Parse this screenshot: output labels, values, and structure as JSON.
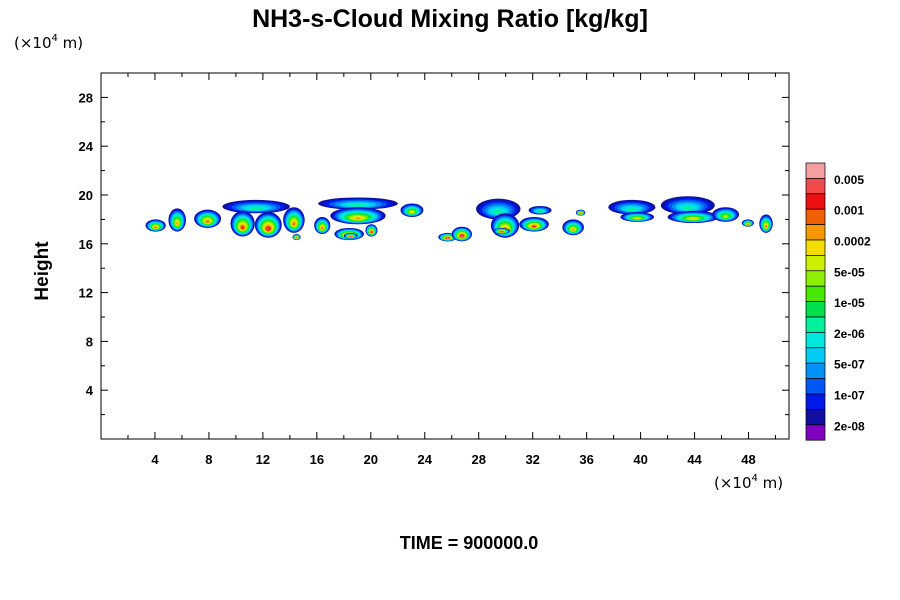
{
  "chart_data": {
    "type": "heatmap",
    "title": "NH3-s-Cloud Mixing Ratio [kg/kg]",
    "xlabel": "",
    "ylabel": "Height",
    "x_unit": "(×10",
    "x_unit_exp": "4",
    "x_unit_tail": " m)",
    "y_unit": "(×10",
    "y_unit_exp": "4",
    "y_unit_tail": " m)",
    "xlim": [
      0,
      51
    ],
    "ylim": [
      0,
      30
    ],
    "x_ticks": [
      4,
      8,
      12,
      16,
      20,
      24,
      28,
      32,
      36,
      40,
      44,
      48
    ],
    "y_ticks": [
      4,
      8,
      12,
      16,
      20,
      24,
      28
    ],
    "grid": false,
    "colorbar": {
      "labels": [
        "0.005",
        "0.001",
        "0.0002",
        "5e-05",
        "1e-05",
        "2e-06",
        "5e-07",
        "1e-07",
        "2e-08"
      ],
      "colors": [
        "#f4a0a0",
        "#f04a4a",
        "#ee1010",
        "#f06000",
        "#f49a00",
        "#f4dc00",
        "#ccf000",
        "#8cf000",
        "#44e800",
        "#00e04c",
        "#00f09c",
        "#00e8dc",
        "#00ccf4",
        "#0092f4",
        "#0058f4",
        "#0018e8",
        "#1010a0",
        "#8000c0"
      ]
    },
    "cloud_blobs": [
      {
        "x0": 3.3,
        "x1": 4.8,
        "y0": 17.0,
        "y1": 18.0,
        "level": 9
      },
      {
        "x0": 5.0,
        "x1": 6.3,
        "y0": 17.0,
        "y1": 18.9,
        "level": 10
      },
      {
        "x0": 6.9,
        "x1": 8.9,
        "y0": 17.3,
        "y1": 18.8,
        "level": 9
      },
      {
        "x0": 9.0,
        "x1": 14.0,
        "y0": 18.5,
        "y1": 19.6,
        "level": 16
      },
      {
        "x0": 9.6,
        "x1": 11.4,
        "y0": 16.6,
        "y1": 18.7,
        "level": 8
      },
      {
        "x0": 11.4,
        "x1": 13.4,
        "y0": 16.5,
        "y1": 18.6,
        "level": 7
      },
      {
        "x0": 13.5,
        "x1": 15.1,
        "y0": 16.9,
        "y1": 19.0,
        "level": 9
      },
      {
        "x0": 14.2,
        "x1": 14.8,
        "y0": 16.3,
        "y1": 16.8,
        "level": 3
      },
      {
        "x0": 15.8,
        "x1": 17.0,
        "y0": 16.8,
        "y1": 18.2,
        "level": 9
      },
      {
        "x0": 16.1,
        "x1": 22.0,
        "y0": 18.8,
        "y1": 19.8,
        "level": 16
      },
      {
        "x0": 17.0,
        "x1": 21.1,
        "y0": 17.6,
        "y1": 19.0,
        "level": 10
      },
      {
        "x0": 17.3,
        "x1": 19.5,
        "y0": 16.3,
        "y1": 17.3,
        "level": 5
      },
      {
        "x0": 18.0,
        "x1": 19.0,
        "y0": 16.4,
        "y1": 16.9,
        "level": 2
      },
      {
        "x0": 19.6,
        "x1": 20.5,
        "y0": 16.6,
        "y1": 17.6,
        "level": 7
      },
      {
        "x0": 22.2,
        "x1": 23.9,
        "y0": 18.2,
        "y1": 19.3,
        "level": 11
      },
      {
        "x0": 25.0,
        "x1": 26.4,
        "y0": 16.2,
        "y1": 16.9,
        "level": 4
      },
      {
        "x0": 26.0,
        "x1": 27.5,
        "y0": 16.2,
        "y1": 17.4,
        "level": 5
      },
      {
        "x0": 27.8,
        "x1": 31.1,
        "y0": 18.0,
        "y1": 19.7,
        "level": 16
      },
      {
        "x0": 28.9,
        "x1": 31.0,
        "y0": 16.5,
        "y1": 18.5,
        "level": 9
      },
      {
        "x0": 29.1,
        "x1": 30.3,
        "y0": 16.8,
        "y1": 17.3,
        "level": 5
      },
      {
        "x0": 31.0,
        "x1": 33.2,
        "y0": 17.0,
        "y1": 18.2,
        "level": 8
      },
      {
        "x0": 31.7,
        "x1": 33.4,
        "y0": 18.4,
        "y1": 19.1,
        "level": 15
      },
      {
        "x0": 34.2,
        "x1": 35.8,
        "y0": 16.7,
        "y1": 18.0,
        "level": 10
      },
      {
        "x0": 35.2,
        "x1": 35.9,
        "y0": 18.3,
        "y1": 18.8,
        "level": 4
      },
      {
        "x0": 37.6,
        "x1": 41.1,
        "y0": 18.4,
        "y1": 19.6,
        "level": 16
      },
      {
        "x0": 38.5,
        "x1": 41.0,
        "y0": 17.8,
        "y1": 18.6,
        "level": 11
      },
      {
        "x0": 41.5,
        "x1": 45.5,
        "y0": 18.4,
        "y1": 19.9,
        "level": 16
      },
      {
        "x0": 42.0,
        "x1": 45.8,
        "y0": 17.7,
        "y1": 18.7,
        "level": 11
      },
      {
        "x0": 45.3,
        "x1": 47.3,
        "y0": 17.8,
        "y1": 19.0,
        "level": 12
      },
      {
        "x0": 47.5,
        "x1": 48.4,
        "y0": 17.4,
        "y1": 18.0,
        "level": 9
      },
      {
        "x0": 48.8,
        "x1": 49.8,
        "y0": 16.9,
        "y1": 18.4,
        "level": 9
      }
    ]
  },
  "footer": {
    "time_label": "TIME = 900000.0"
  }
}
